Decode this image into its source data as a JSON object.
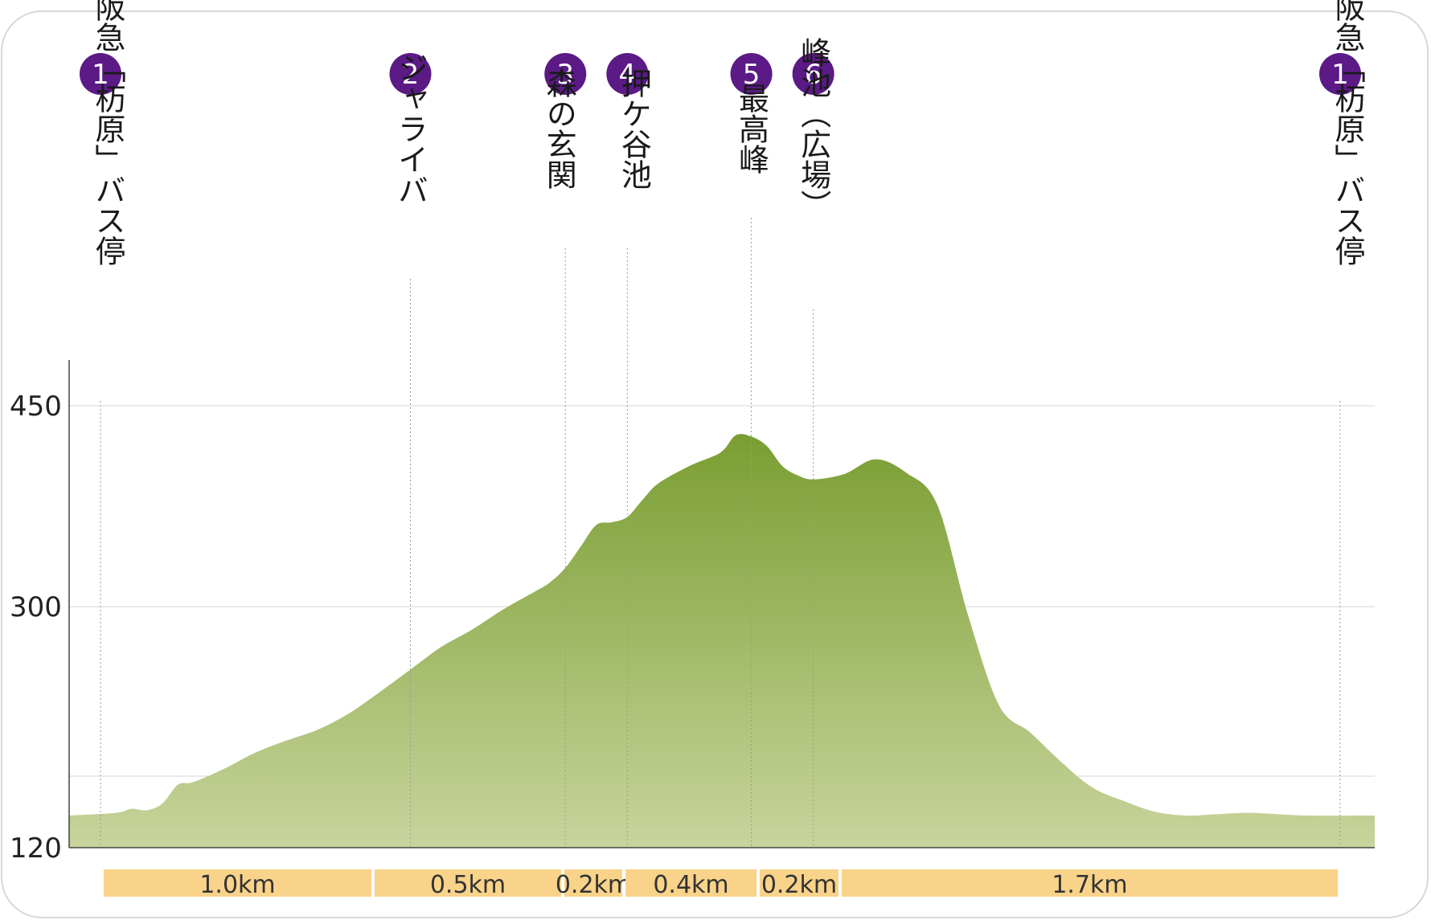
{
  "chart_data": {
    "type": "area",
    "title": "",
    "xlabel": "",
    "ylabel": "",
    "ylim": [
      120,
      450
    ],
    "yticks": [
      120,
      300,
      450
    ],
    "grid": true,
    "unit_x": "km",
    "colors": {
      "fill_top": "#7a9e32",
      "fill_bottom": "#c8d49c",
      "marker": "#5b1a86",
      "segment": "#f9d38a",
      "frame": "#d8d8d8"
    },
    "waypoints": [
      {
        "num": "1",
        "name": "阪急「杤原」バス停",
        "distance": 0.0
      },
      {
        "num": "2",
        "name": "ジャライバ",
        "distance": 1.0
      },
      {
        "num": "3",
        "name": "森の玄関",
        "distance": 1.5
      },
      {
        "num": "4",
        "name": "押ケ谷池",
        "distance": 1.7
      },
      {
        "num": "5",
        "name": "最高峰",
        "distance": 2.1
      },
      {
        "num": "6",
        "name": "峰池（広場）",
        "distance": 2.3
      },
      {
        "num": "1",
        "name": "阪急「杤原」バス停",
        "distance": 4.0
      }
    ],
    "segments": [
      {
        "label": "1.0km",
        "from": 0.0,
        "to": 1.0
      },
      {
        "label": "0.5km",
        "from": 1.0,
        "to": 1.5
      },
      {
        "label": "0.2km",
        "from": 1.5,
        "to": 1.7
      },
      {
        "label": "0.4km",
        "from": 1.7,
        "to": 2.1
      },
      {
        "label": "0.2km",
        "from": 2.1,
        "to": 2.3
      },
      {
        "label": "1.7km",
        "from": 2.3,
        "to": 4.0
      }
    ],
    "series": [
      {
        "x": [
          0.0,
          0.05,
          0.1,
          0.15,
          0.2,
          0.25,
          0.3,
          0.4,
          0.5,
          0.6,
          0.7,
          0.8,
          0.9,
          1.0,
          1.1,
          1.2,
          1.3,
          1.4,
          1.45,
          1.5,
          1.55,
          1.6,
          1.65,
          1.7,
          1.75,
          1.8,
          1.9,
          2.0,
          2.05,
          2.1,
          2.15,
          2.2,
          2.25,
          2.3,
          2.4,
          2.5,
          2.6,
          2.7,
          2.8,
          2.9,
          3.0,
          3.1,
          3.2,
          3.3,
          3.4,
          3.5,
          3.6,
          3.7,
          3.8,
          3.9,
          4.0
        ],
        "y": [
          144,
          146,
          149,
          148,
          153,
          167,
          169,
          179,
          191,
          200,
          208,
          220,
          236,
          253,
          270,
          283,
          298,
          311,
          318,
          329,
          345,
          361,
          363,
          367,
          380,
          392,
          405,
          415,
          428,
          427,
          420,
          405,
          398,
          395,
          399,
          410,
          400,
          376,
          293,
          226,
          206,
          184,
          165,
          155,
          147,
          144,
          145,
          146,
          145,
          144,
          144
        ]
      }
    ]
  }
}
